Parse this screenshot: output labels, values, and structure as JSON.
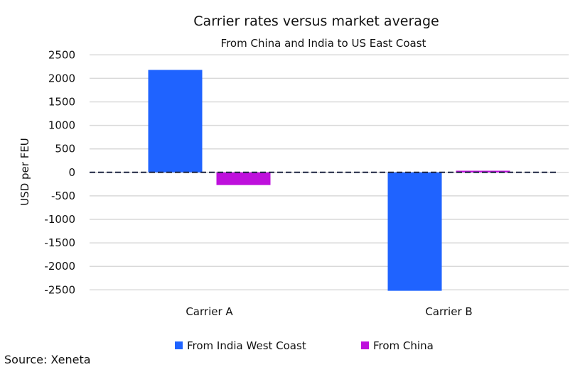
{
  "chart_data": {
    "type": "bar",
    "title": "Carrier rates versus market average",
    "subtitle": "From China and India to US East Coast",
    "ylabel": "USD per FEU",
    "xlabel": "",
    "categories": [
      "Carrier A",
      "Carrier B"
    ],
    "series": [
      {
        "name": "From India West Coast",
        "values": [
          2180,
          -2520
        ],
        "color": "#1F63FF"
      },
      {
        "name": "From China",
        "values": [
          -270,
          35
        ],
        "color": "#BE10DC"
      }
    ],
    "ylim": [
      -2500,
      2500
    ],
    "yticks": [
      2500,
      2000,
      1500,
      1000,
      500,
      0,
      -500,
      -1000,
      -1500,
      -2000,
      -2500
    ],
    "grid": true,
    "zero_line": "dashed",
    "legend": "bottom",
    "source": "Source: Xeneta"
  }
}
